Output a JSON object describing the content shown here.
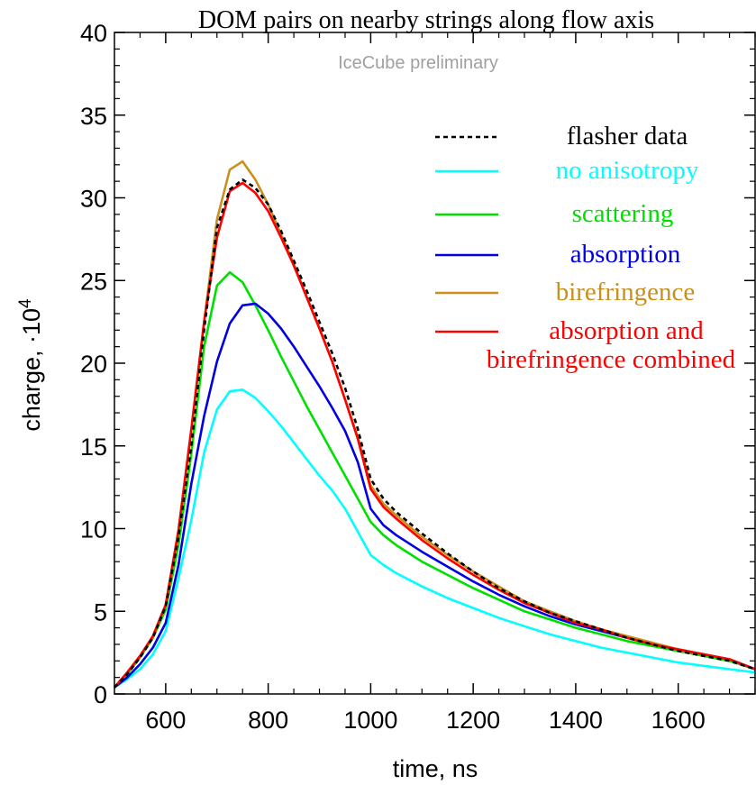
{
  "chart_data": {
    "type": "line",
    "title": "DOM pairs on nearby strings along flow axis",
    "annotation": "IceCube preliminary",
    "xlabel": "time, ns",
    "ylabel_main": "charge, ·10",
    "ylabel_exp": "4",
    "xlim": [
      500,
      1750
    ],
    "ylim": [
      0,
      40
    ],
    "xticks": [
      600,
      800,
      1000,
      1200,
      1400,
      1600
    ],
    "yticks": [
      0,
      5,
      10,
      15,
      20,
      25,
      30,
      35,
      40
    ],
    "x": [
      500,
      525,
      550,
      575,
      600,
      625,
      650,
      675,
      700,
      725,
      750,
      775,
      800,
      825,
      850,
      875,
      900,
      925,
      950,
      975,
      1000,
      1025,
      1050,
      1100,
      1150,
      1200,
      1250,
      1300,
      1350,
      1400,
      1450,
      1500,
      1550,
      1600,
      1650,
      1700,
      1750
    ],
    "series": [
      {
        "name": "flasher data",
        "color": "#000000",
        "dash": true,
        "values": [
          0.4,
          1.2,
          2.2,
          3.4,
          5.3,
          9.5,
          15.0,
          22.0,
          28.2,
          30.5,
          31.1,
          30.6,
          29.6,
          28.0,
          26.2,
          24.4,
          22.5,
          20.6,
          18.5,
          16.0,
          13.0,
          11.8,
          11.0,
          9.7,
          8.5,
          7.4,
          6.4,
          5.6,
          4.9,
          4.4,
          3.9,
          3.4,
          3.0,
          2.6,
          2.3,
          2.0,
          1.5
        ]
      },
      {
        "name": "no anisotropy",
        "color": "#00ffff",
        "dash": false,
        "values": [
          0.4,
          0.9,
          1.5,
          2.4,
          3.8,
          7.0,
          10.5,
          14.6,
          17.2,
          18.3,
          18.4,
          17.9,
          17.1,
          16.2,
          15.2,
          14.2,
          13.2,
          12.3,
          11.2,
          9.8,
          8.4,
          7.8,
          7.3,
          6.5,
          5.8,
          5.2,
          4.6,
          4.1,
          3.6,
          3.2,
          2.8,
          2.5,
          2.2,
          1.9,
          1.7,
          1.5,
          1.3
        ]
      },
      {
        "name": "scattering",
        "color": "#00e000",
        "dash": false,
        "values": [
          0.4,
          1.2,
          2.2,
          3.4,
          5.1,
          9.0,
          14.5,
          21.0,
          24.7,
          25.5,
          24.9,
          23.5,
          22.0,
          20.4,
          18.9,
          17.4,
          16.0,
          14.6,
          13.2,
          11.8,
          10.4,
          9.6,
          9.0,
          8.0,
          7.2,
          6.4,
          5.7,
          5.0,
          4.5,
          4.0,
          3.6,
          3.2,
          2.9,
          2.6,
          2.3,
          2.0,
          1.5
        ]
      },
      {
        "name": "absorption",
        "color": "#0000e0",
        "dash": false,
        "values": [
          0.4,
          1.0,
          1.8,
          2.8,
          4.3,
          7.8,
          12.7,
          16.8,
          20.1,
          22.4,
          23.5,
          23.6,
          23.0,
          22.1,
          21.0,
          19.8,
          18.6,
          17.3,
          15.9,
          14.0,
          11.2,
          10.2,
          9.6,
          8.6,
          7.7,
          6.8,
          6.0,
          5.3,
          4.7,
          4.2,
          3.8,
          3.4,
          3.0,
          2.7,
          2.4,
          2.1,
          1.5
        ]
      },
      {
        "name": "birefringence",
        "color": "#c8901e",
        "dash": false,
        "values": [
          0.4,
          1.3,
          2.3,
          3.5,
          5.4,
          9.9,
          16.0,
          22.5,
          28.7,
          31.7,
          32.2,
          31.1,
          29.6,
          27.8,
          26.0,
          24.0,
          22.1,
          20.1,
          17.8,
          15.5,
          12.6,
          11.5,
          10.8,
          9.5,
          8.4,
          7.4,
          6.5,
          5.6,
          5.0,
          4.4,
          3.9,
          3.5,
          3.1,
          2.7,
          2.4,
          2.1,
          1.5
        ]
      },
      {
        "name": "absorption and",
        "name2": "birefringence combined",
        "color": "#ff0000",
        "dash": false,
        "values": [
          0.4,
          1.3,
          2.3,
          3.5,
          5.4,
          9.9,
          16.0,
          22.5,
          27.6,
          30.4,
          30.9,
          30.3,
          29.2,
          27.6,
          25.9,
          24.0,
          22.1,
          20.1,
          17.8,
          15.4,
          12.4,
          11.3,
          10.6,
          9.3,
          8.2,
          7.2,
          6.3,
          5.5,
          4.9,
          4.3,
          3.9,
          3.4,
          3.0,
          2.7,
          2.4,
          2.1,
          1.5
        ]
      }
    ]
  }
}
